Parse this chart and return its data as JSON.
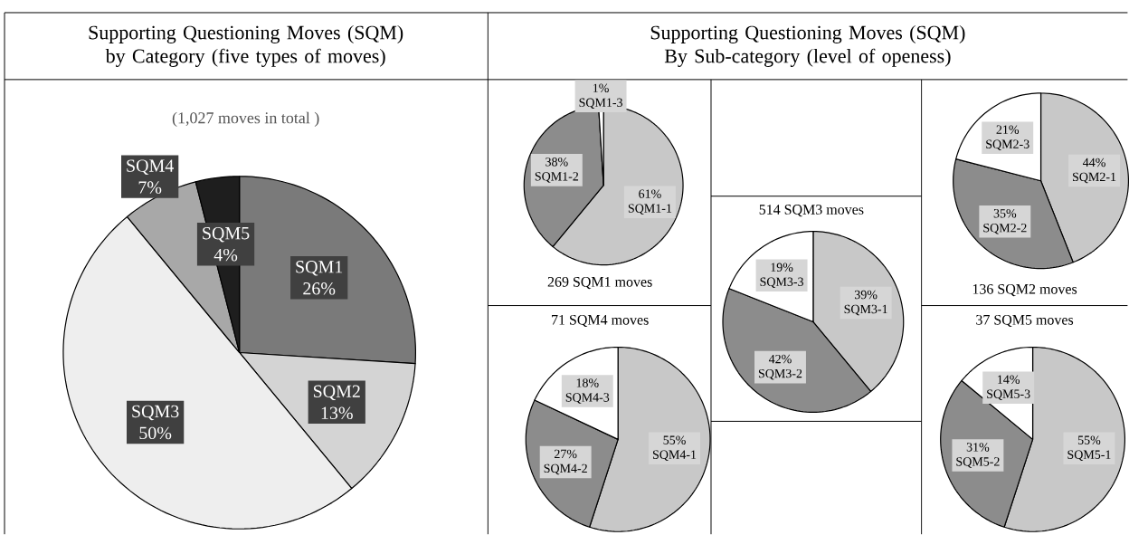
{
  "chart_data": [
    {
      "type": "pie",
      "title": "Supporting Questioning Moves (SQM) by Category (five types of moves)",
      "subtitle": "(1,027 moves in total )",
      "categories": [
        "SQM1",
        "SQM2",
        "SQM3",
        "SQM4",
        "SQM5"
      ],
      "values": [
        26,
        13,
        50,
        7,
        4
      ],
      "value_labels": [
        "26%",
        "13%",
        "50%",
        "7%",
        "4%"
      ],
      "colors": [
        "#7a7a7a",
        "#d4d4d4",
        "#eeeeee",
        "#a8a8a8",
        "#1e1e1e"
      ]
    },
    {
      "type": "pie",
      "title": "269 SQM1 moves",
      "annotations": [
        "Supporting Questioning Moves (SQM) By Sub-category (level of openess)"
      ],
      "categories": [
        "SQM1-1",
        "SQM1-2",
        "SQM1-3"
      ],
      "values": [
        61,
        38,
        1
      ],
      "value_labels": [
        "61%",
        "38%",
        "1%"
      ],
      "colors": [
        "#c8c8c8",
        "#8c8c8c",
        "#ffffff"
      ]
    },
    {
      "type": "pie",
      "title": "514 SQM3 moves",
      "categories": [
        "SQM3-1",
        "SQM3-2",
        "SQM3-3"
      ],
      "values": [
        39,
        42,
        19
      ],
      "value_labels": [
        "39%",
        "42%",
        "19%"
      ],
      "colors": [
        "#c8c8c8",
        "#8c8c8c",
        "#ffffff"
      ]
    },
    {
      "type": "pie",
      "title": "136 SQM2 moves",
      "categories": [
        "SQM2-1",
        "SQM2-2",
        "SQM2-3"
      ],
      "values": [
        44,
        35,
        21
      ],
      "value_labels": [
        "44%",
        "35%",
        "21%"
      ],
      "colors": [
        "#c8c8c8",
        "#8c8c8c",
        "#ffffff"
      ]
    },
    {
      "type": "pie",
      "title": "71 SQM4 moves",
      "categories": [
        "SQM4-1",
        "SQM4-2",
        "SQM4-3"
      ],
      "values": [
        55,
        27,
        18
      ],
      "value_labels": [
        "55%",
        "27%",
        "18%"
      ],
      "colors": [
        "#c8c8c8",
        "#8c8c8c",
        "#ffffff"
      ]
    },
    {
      "type": "pie",
      "title": "37 SQM5 moves",
      "categories": [
        "SQM5-1",
        "SQM5-2",
        "SQM5-3"
      ],
      "values": [
        55,
        31,
        14
      ],
      "value_labels": [
        "55%",
        "31%",
        "14%"
      ],
      "colors": [
        "#c8c8c8",
        "#8c8c8c",
        "#ffffff"
      ]
    }
  ]
}
